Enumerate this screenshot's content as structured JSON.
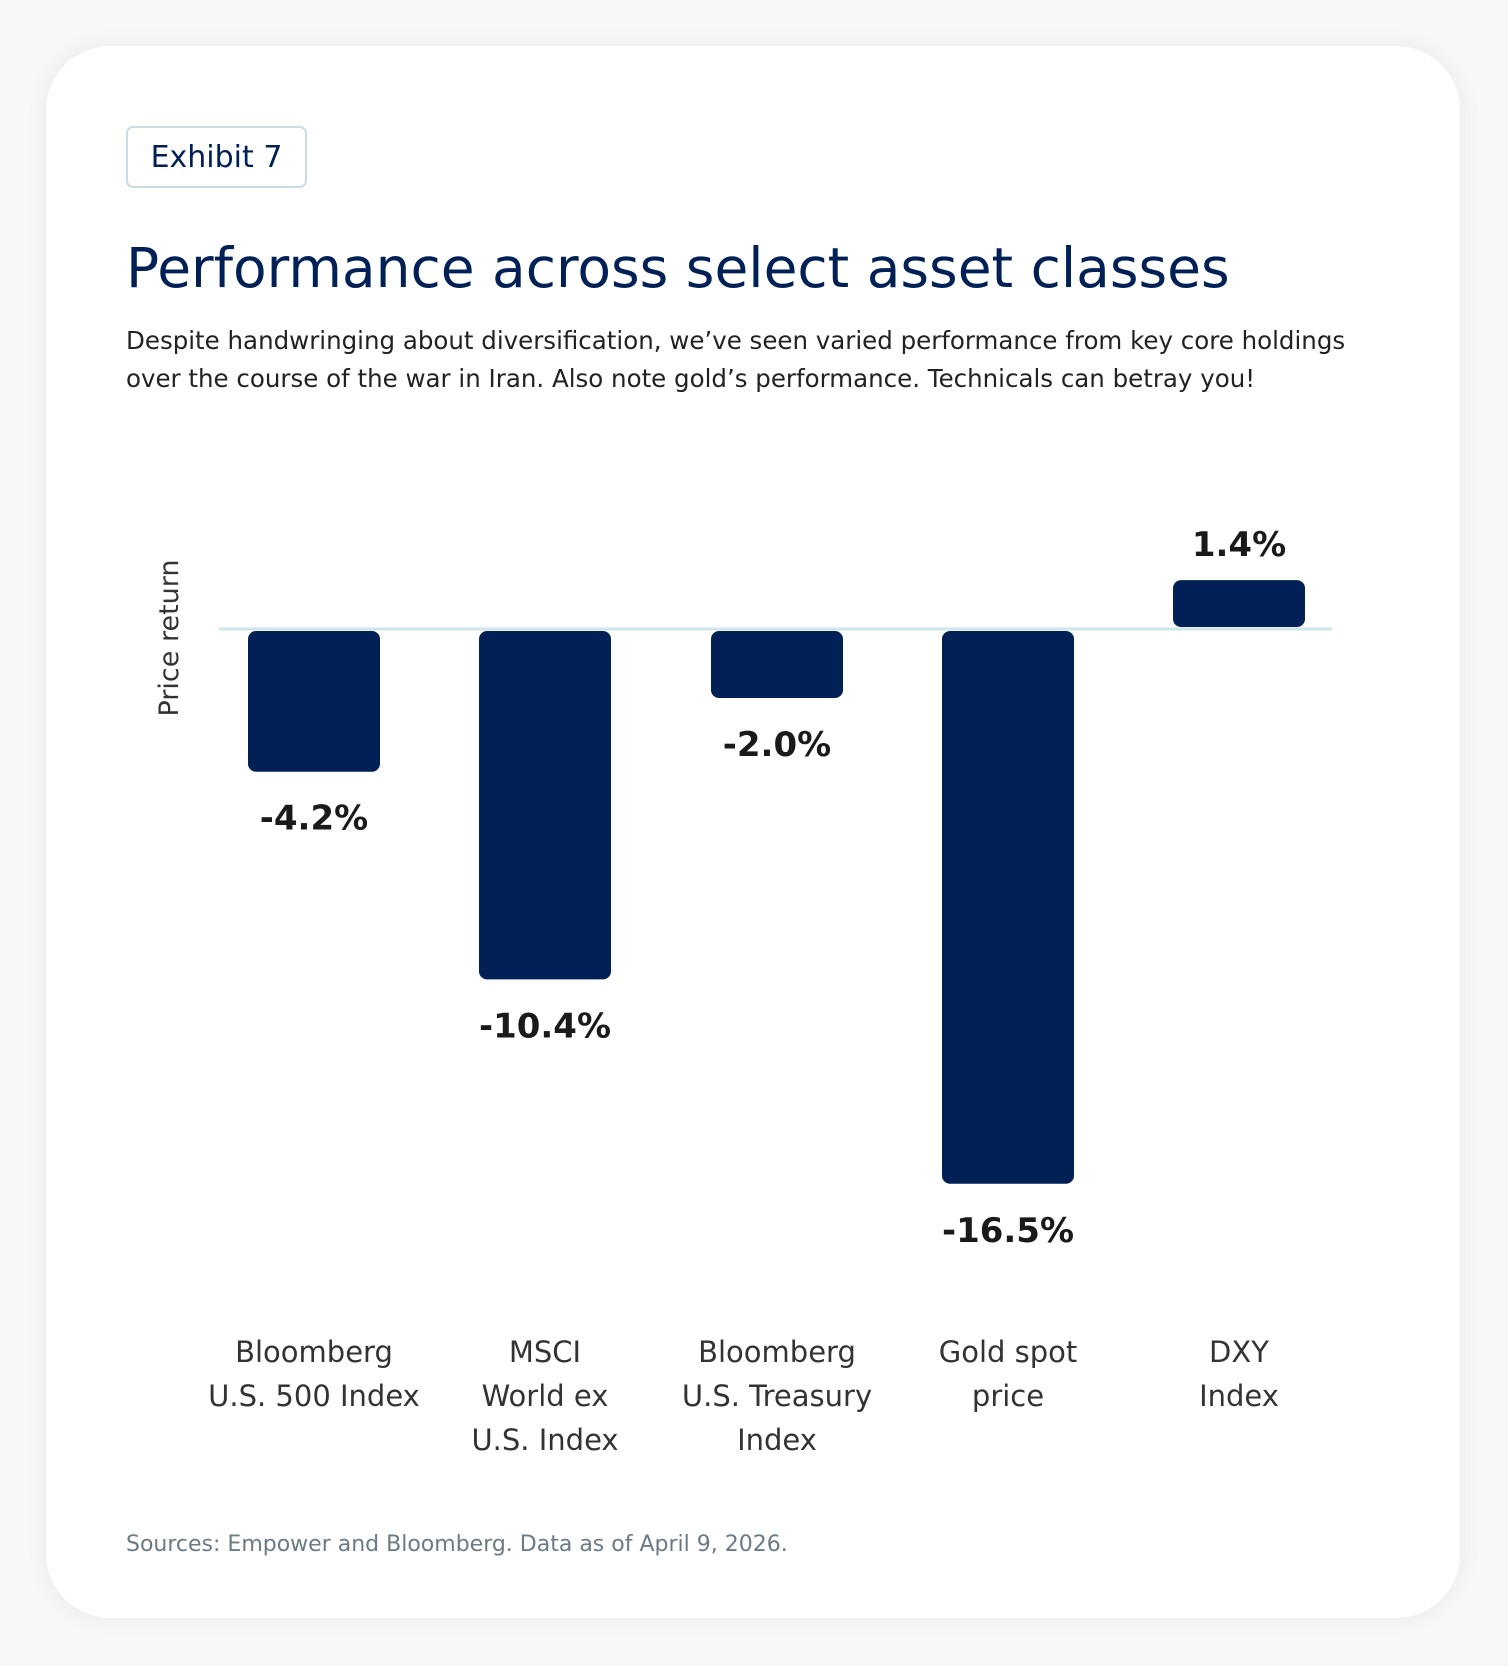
{
  "badge": "Exhibit 7",
  "title": "Performance across select asset classes",
  "subtitle": "Despite handwringing about diversification, we’ve seen varied performance from key core holdings over the course of the war in Iran. Also note gold’s performance. Technicals can betray you!",
  "source": "Sources: Empower and Bloomberg. Data as of April 9, 2026.",
  "chart_data": {
    "type": "bar",
    "title": "Performance across select asset classes",
    "ylabel": "Price return",
    "categories": [
      "Bloomberg U.S. 500 Index",
      "MSCI World ex U.S. Index",
      "Bloomberg U.S. Treasury Index",
      "Gold spot price",
      "DXY Index"
    ],
    "category_lines": [
      [
        "Bloomberg",
        "U.S. 500 Index"
      ],
      [
        "MSCI",
        "World ex",
        "U.S. Index"
      ],
      [
        "Bloomberg",
        "U.S. Treasury",
        "Index"
      ],
      [
        "Gold spot",
        "price"
      ],
      [
        "DXY",
        "Index"
      ]
    ],
    "values": [
      -4.2,
      -10.4,
      -2.0,
      -16.5,
      1.4
    ],
    "data_labels": [
      "-4.2%",
      "-10.4%",
      "-2.0%",
      "-16.5%",
      "1.4%"
    ],
    "unit": "%",
    "grid": false,
    "bar_color": "#012055",
    "zero_line_color": "#cfe5ec"
  }
}
